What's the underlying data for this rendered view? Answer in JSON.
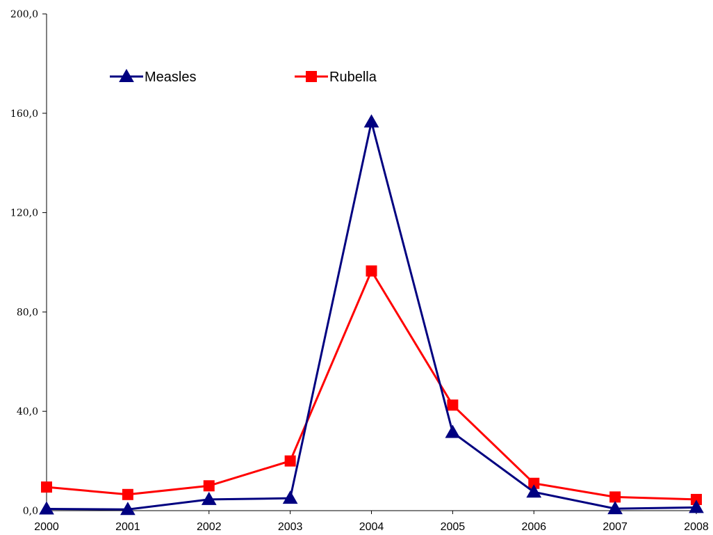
{
  "chart_data": {
    "type": "line",
    "categories": [
      "2000",
      "2001",
      "2002",
      "2003",
      "2004",
      "2005",
      "2006",
      "2007",
      "2008"
    ],
    "series": [
      {
        "name": "Measles",
        "color": "#000080",
        "marker": "triangle",
        "values": [
          0.7,
          0.5,
          4.5,
          5.0,
          156.5,
          31.5,
          7.5,
          0.8,
          1.3
        ]
      },
      {
        "name": "Rubella",
        "color": "#ff0000",
        "marker": "square",
        "values": [
          9.5,
          6.5,
          10.0,
          20.0,
          96.5,
          42.5,
          11.0,
          5.5,
          4.5
        ]
      }
    ],
    "ylim": [
      0,
      200
    ],
    "yticks": [
      "0,0",
      "40,0",
      "80,0",
      "120,0",
      "160,0",
      "200,0"
    ],
    "ytick_values": [
      0,
      40,
      80,
      120,
      160,
      200
    ],
    "grid": false,
    "legend_position": "top-left"
  }
}
